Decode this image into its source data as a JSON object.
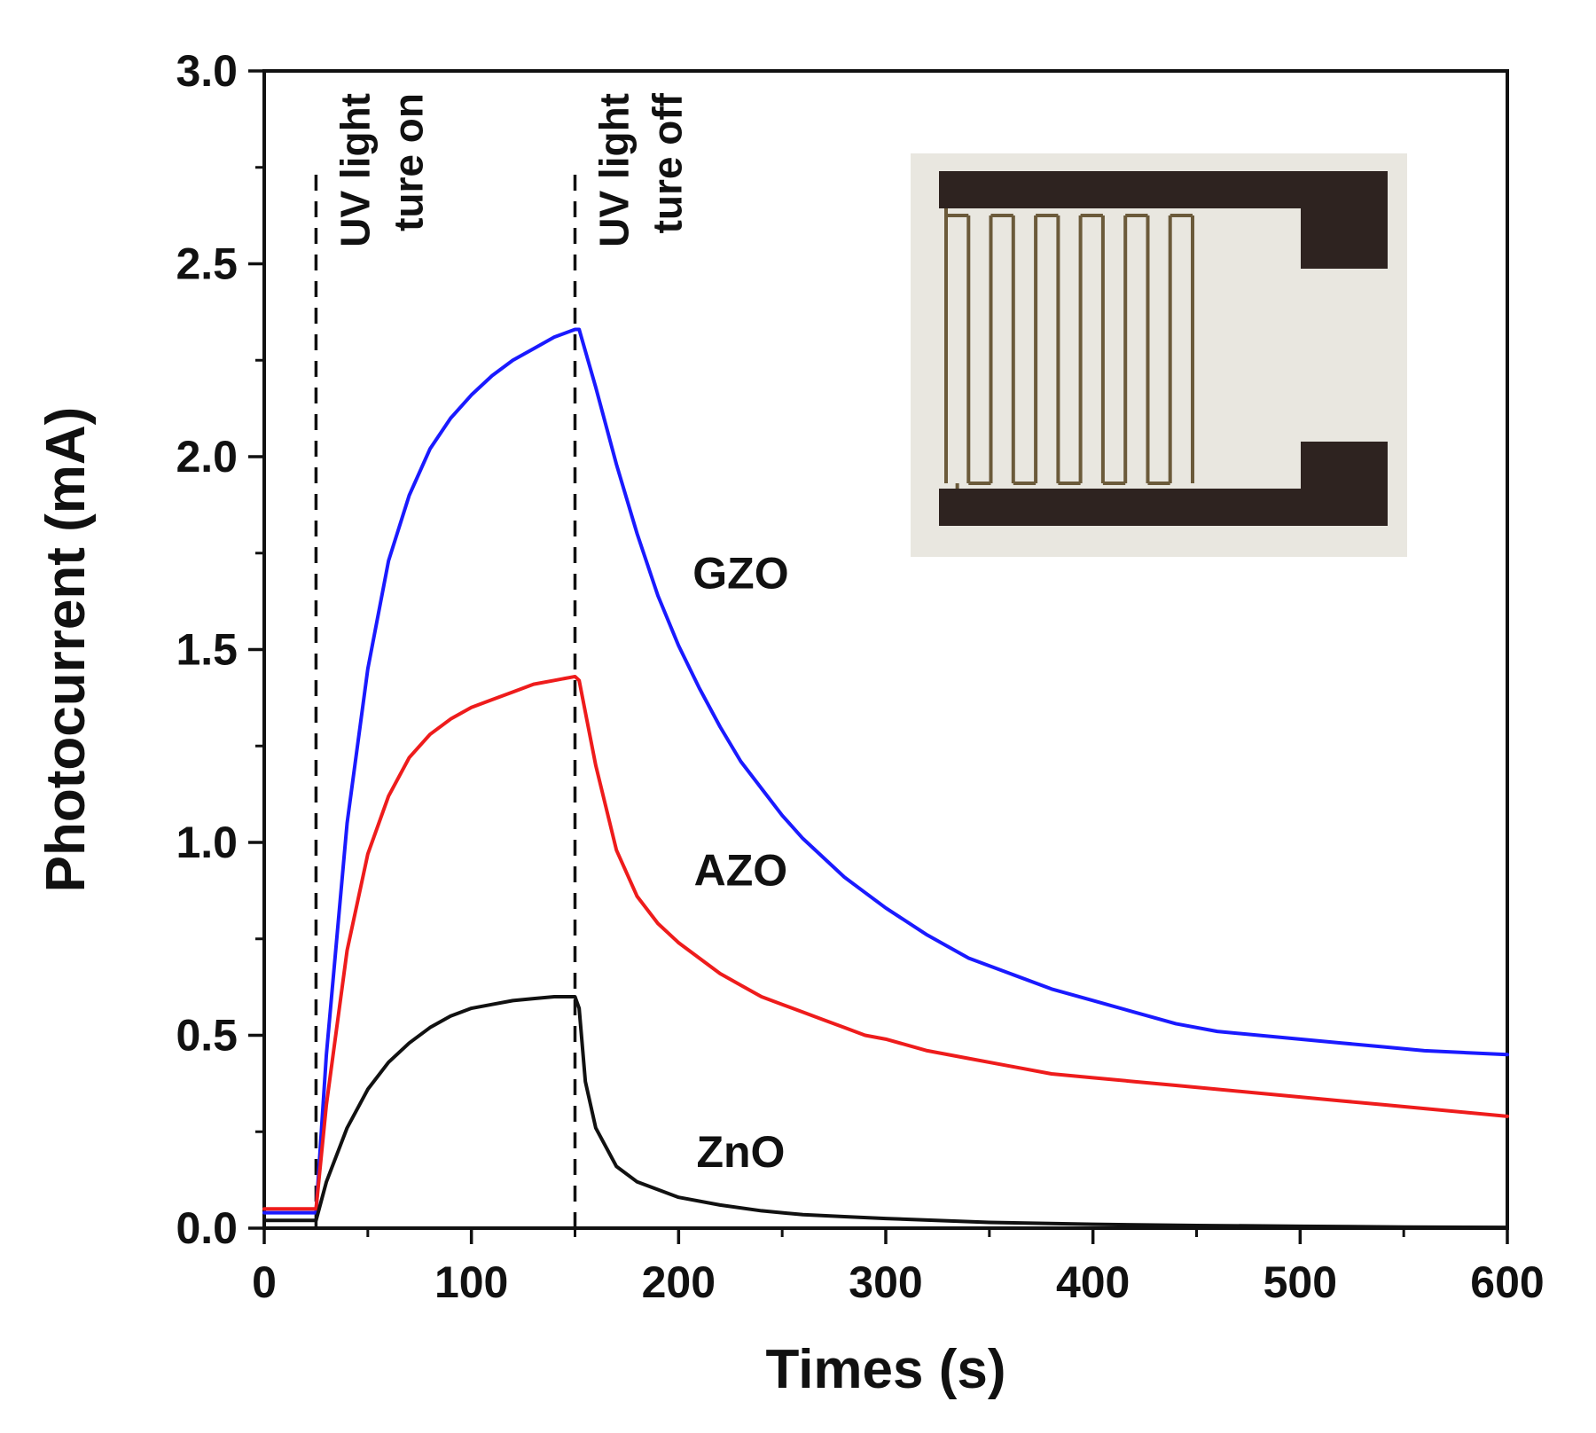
{
  "chart_data": {
    "type": "line",
    "title": "",
    "xlabel": "Times (s)",
    "ylabel": "Photocurrent (mA)",
    "xlim": [
      0,
      600
    ],
    "ylim": [
      0,
      3.0
    ],
    "xticks": [
      0,
      100,
      200,
      300,
      400,
      500,
      600
    ],
    "xtick_labels": [
      "0",
      "100",
      "200",
      "300",
      "400",
      "500",
      "600"
    ],
    "yticks": [
      0,
      0.5,
      1.0,
      1.5,
      2.0,
      2.5,
      3.0
    ],
    "ytick_labels": [
      "0.0",
      "0.5",
      "1.0",
      "1.5",
      "2.0",
      "2.5",
      "3.0"
    ],
    "grid": false,
    "vlines": [
      {
        "x": 25,
        "style": "dashed",
        "label_lines": [
          "UV light",
          "ture on"
        ]
      },
      {
        "x": 150,
        "style": "dashed",
        "label_lines": [
          "UV light",
          "ture off"
        ]
      }
    ],
    "series": [
      {
        "name": "GZO",
        "color": "#1a1aff",
        "x": [
          0,
          24,
          25,
          30,
          40,
          50,
          60,
          70,
          80,
          90,
          100,
          110,
          120,
          130,
          140,
          150,
          152,
          160,
          170,
          180,
          190,
          200,
          210,
          220,
          230,
          240,
          250,
          260,
          270,
          280,
          290,
          300,
          320,
          340,
          360,
          380,
          400,
          420,
          440,
          460,
          480,
          500,
          520,
          540,
          560,
          580,
          600
        ],
        "y": [
          0.04,
          0.04,
          0.04,
          0.45,
          1.05,
          1.45,
          1.73,
          1.9,
          2.02,
          2.1,
          2.16,
          2.21,
          2.25,
          2.28,
          2.31,
          2.33,
          2.33,
          2.18,
          1.98,
          1.8,
          1.64,
          1.51,
          1.4,
          1.3,
          1.21,
          1.14,
          1.07,
          1.01,
          0.96,
          0.91,
          0.87,
          0.83,
          0.76,
          0.7,
          0.66,
          0.62,
          0.59,
          0.56,
          0.53,
          0.51,
          0.5,
          0.49,
          0.48,
          0.47,
          0.46,
          0.455,
          0.45
        ]
      },
      {
        "name": "AZO",
        "color": "#ee1c1c",
        "x": [
          0,
          24,
          25,
          30,
          40,
          50,
          60,
          70,
          80,
          90,
          100,
          110,
          120,
          130,
          140,
          150,
          152,
          160,
          170,
          180,
          190,
          200,
          210,
          220,
          230,
          240,
          250,
          260,
          270,
          280,
          290,
          300,
          320,
          340,
          360,
          380,
          400,
          420,
          440,
          460,
          480,
          500,
          520,
          540,
          560,
          580,
          600
        ],
        "y": [
          0.05,
          0.05,
          0.05,
          0.32,
          0.72,
          0.97,
          1.12,
          1.22,
          1.28,
          1.32,
          1.35,
          1.37,
          1.39,
          1.41,
          1.42,
          1.43,
          1.42,
          1.2,
          0.98,
          0.86,
          0.79,
          0.74,
          0.7,
          0.66,
          0.63,
          0.6,
          0.58,
          0.56,
          0.54,
          0.52,
          0.5,
          0.49,
          0.46,
          0.44,
          0.42,
          0.4,
          0.39,
          0.38,
          0.37,
          0.36,
          0.35,
          0.34,
          0.33,
          0.32,
          0.31,
          0.3,
          0.29
        ]
      },
      {
        "name": "ZnO",
        "color": "#111111",
        "x": [
          0,
          24,
          25,
          30,
          40,
          50,
          60,
          70,
          80,
          90,
          100,
          110,
          120,
          130,
          140,
          150,
          152,
          155,
          160,
          170,
          180,
          190,
          200,
          220,
          240,
          260,
          280,
          300,
          350,
          400,
          450,
          500,
          550,
          600
        ],
        "y": [
          0.02,
          0.02,
          0.02,
          0.12,
          0.26,
          0.36,
          0.43,
          0.48,
          0.52,
          0.55,
          0.57,
          0.58,
          0.59,
          0.595,
          0.6,
          0.6,
          0.57,
          0.38,
          0.26,
          0.16,
          0.12,
          0.1,
          0.08,
          0.06,
          0.045,
          0.035,
          0.03,
          0.025,
          0.015,
          0.01,
          0.007,
          0.005,
          0.003,
          0.002
        ]
      }
    ],
    "annotations": [
      {
        "text": "GZO",
        "x": 230,
        "y": 1.7
      },
      {
        "text": "AZO",
        "x": 230,
        "y": 0.93
      },
      {
        "text": "ZnO",
        "x": 230,
        "y": 0.2
      }
    ],
    "inset": "photo of an interdigitated electrode pattern (top-right)"
  }
}
